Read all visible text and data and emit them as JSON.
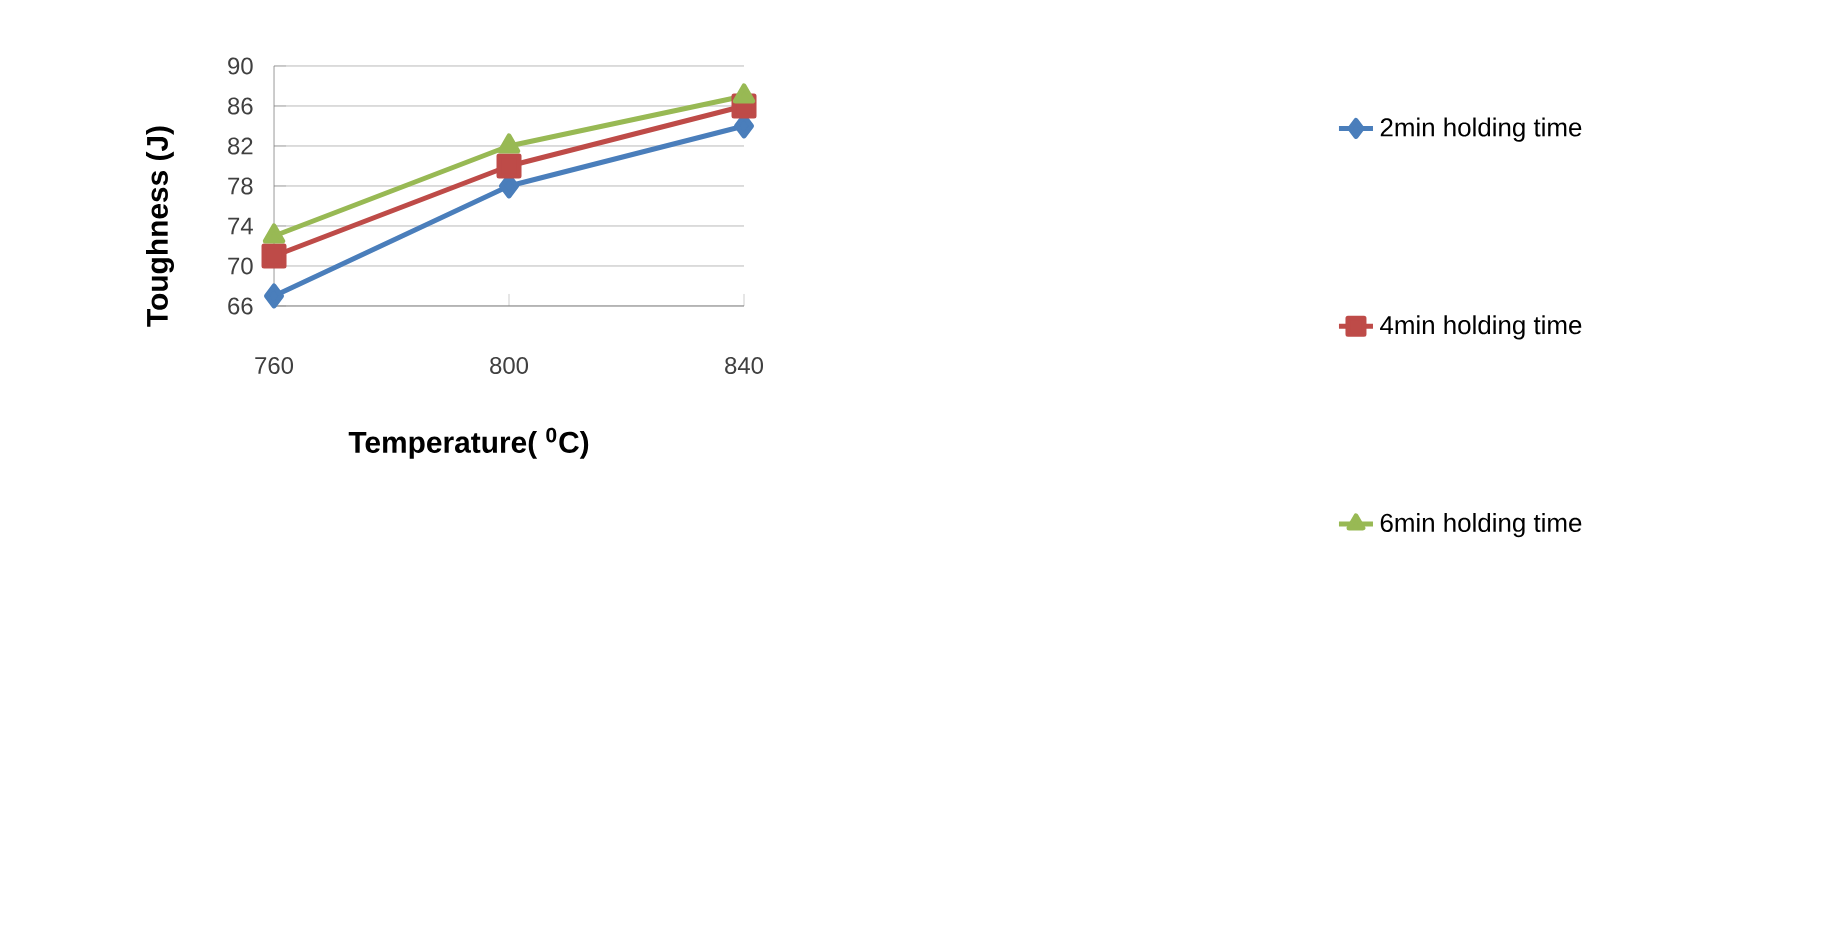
{
  "chart_data": {
    "type": "line",
    "xlabel": "Temperature( $^{0}$C)",
    "ylabel": "Toughness (J)",
    "x": [
      760,
      800,
      840
    ],
    "xlim": [
      760,
      840
    ],
    "xticks": [
      760,
      800,
      840
    ],
    "ylim": [
      66,
      90
    ],
    "yticks": [
      66,
      70,
      74,
      78,
      82,
      86,
      90
    ],
    "grid": "y",
    "legend": "right",
    "line_style": "solid",
    "series": [
      {
        "name": "2min  holding time",
        "color": "#4a7ebb",
        "marker": "diamond",
        "values": [
          67,
          78,
          84
        ]
      },
      {
        "name": "4min holding time",
        "color": "#be4b48",
        "marker": "square",
        "values": [
          71,
          80,
          86
        ]
      },
      {
        "name": "6min  holding time",
        "color": "#98b954",
        "marker": "triangle",
        "values": [
          73,
          82,
          87
        ]
      }
    ]
  }
}
